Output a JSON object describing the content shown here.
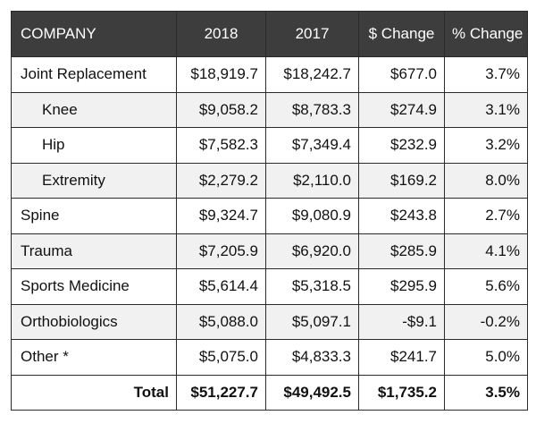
{
  "header": {
    "company": "COMPANY",
    "y2018": "2018",
    "y2017": "2017",
    "dollar_change": "$ Change",
    "pct_change": "% Change"
  },
  "rows": [
    {
      "label": "Joint Replacement",
      "v2018": "$18,919.7",
      "v2017": "$18,242.7",
      "dchg": "$677.0",
      "pchg": "3.7%"
    },
    {
      "label": "Knee",
      "v2018": "$9,058.2",
      "v2017": "$8,783.3",
      "dchg": "$274.9",
      "pchg": "3.1%"
    },
    {
      "label": "Hip",
      "v2018": "$7,582.3",
      "v2017": "$7,349.4",
      "dchg": "$232.9",
      "pchg": "3.2%"
    },
    {
      "label": "Extremity",
      "v2018": "$2,279.2",
      "v2017": "$2,110.0",
      "dchg": "$169.2",
      "pchg": "8.0%"
    },
    {
      "label": "Spine",
      "v2018": "$9,324.7",
      "v2017": "$9,080.9",
      "dchg": "$243.8",
      "pchg": "2.7%"
    },
    {
      "label": "Trauma",
      "v2018": "$7,205.9",
      "v2017": "$6,920.0",
      "dchg": "$285.9",
      "pchg": "4.1%"
    },
    {
      "label": "Sports Medicine",
      "v2018": "$5,614.4",
      "v2017": "$5,318.5",
      "dchg": "$295.9",
      "pchg": "5.6%"
    },
    {
      "label": "Orthobiologics",
      "v2018": "$5,088.0",
      "v2017": "$5,097.1",
      "dchg": "-$9.1",
      "pchg": "-0.2%"
    },
    {
      "label": "Other *",
      "v2018": "$5,075.0",
      "v2017": "$4,833.3",
      "dchg": "$241.7",
      "pchg": "5.0%"
    }
  ],
  "total": {
    "label": "Total",
    "v2018": "$51,227.7",
    "v2017": "$49,492.5",
    "dchg": "$1,735.2",
    "pchg": "3.5%"
  }
}
